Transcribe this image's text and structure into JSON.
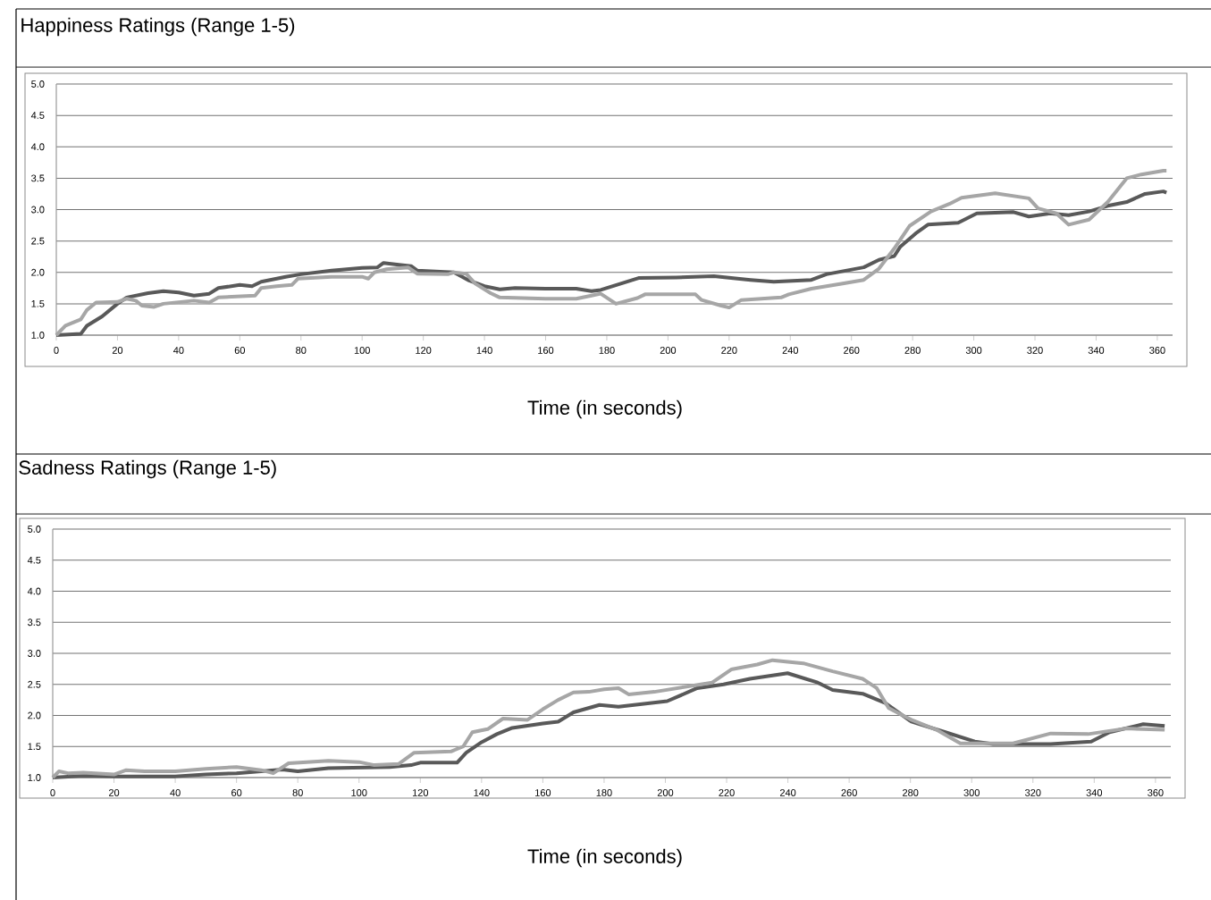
{
  "chart_data": [
    {
      "type": "line",
      "title": "Happiness Ratings (Range 1-5)",
      "xlabel": "Time (in seconds)",
      "xlim": [
        0,
        365
      ],
      "ylim": [
        1,
        5
      ],
      "grid": "y",
      "xticks": [
        0,
        20,
        40,
        60,
        80,
        100,
        120,
        140,
        160,
        180,
        200,
        220,
        240,
        260,
        280,
        300,
        320,
        340,
        360
      ],
      "yticks": [
        {
          "value": 1.0,
          "label": "1.0"
        },
        {
          "value": 1.5,
          "label": "1.5"
        },
        {
          "value": 2.0,
          "label": "2.0"
        },
        {
          "value": 2.5,
          "label": "2.5"
        },
        {
          "value": 3.0,
          "label": "3.0"
        },
        {
          "value": 3.5,
          "label": "3.5"
        },
        {
          "value": 4.0,
          "label": "4.0"
        },
        {
          "value": 4.5,
          "label": "4.5"
        },
        {
          "value": 5.0,
          "label": "5.0"
        }
      ],
      "series": [
        {
          "color": "#595959",
          "x": [
            0,
            8,
            10,
            15,
            20,
            23,
            30,
            35,
            40,
            45,
            50,
            53,
            60,
            64,
            67,
            75,
            80,
            90,
            100,
            105,
            107,
            112,
            116,
            118,
            130,
            135,
            140,
            145,
            150,
            160,
            170,
            175,
            178,
            190.4,
            202.7,
            215,
            227,
            234.6,
            246.9,
            251.8,
            264,
            269,
            274,
            276,
            281,
            285,
            294.9,
            301,
            313,
            318,
            325,
            331,
            337.7,
            343.8,
            350,
            356,
            362,
            363
          ],
          "values": [
            1.0,
            1.02,
            1.15,
            1.3,
            1.5,
            1.6,
            1.67,
            1.7,
            1.68,
            1.63,
            1.66,
            1.75,
            1.8,
            1.78,
            1.85,
            1.93,
            1.97,
            2.03,
            2.07,
            2.08,
            2.15,
            2.12,
            2.1,
            2.03,
            2.0,
            1.87,
            1.78,
            1.73,
            1.75,
            1.74,
            1.74,
            1.7,
            1.72,
            1.91,
            1.92,
            1.94,
            1.88,
            1.85,
            1.88,
            1.97,
            2.08,
            2.2,
            2.26,
            2.41,
            2.62,
            2.76,
            2.79,
            2.94,
            2.96,
            2.89,
            2.94,
            2.91,
            2.97,
            3.06,
            3.12,
            3.25,
            3.29,
            3.27
          ]
        },
        {
          "color": "#a6a6a6",
          "x": [
            0,
            3,
            8,
            10,
            13,
            20,
            23,
            26,
            28,
            32,
            35,
            45,
            50,
            53,
            65,
            67,
            72,
            77,
            79,
            90,
            100,
            102,
            104,
            108,
            115,
            118,
            128,
            130,
            134,
            137,
            142,
            145,
            160,
            170,
            175,
            178,
            183,
            190,
            192.5,
            209,
            211,
            217.4,
            220,
            224,
            237,
            239.5,
            246.9,
            256.7,
            264,
            269,
            274,
            279,
            286,
            292,
            296,
            307,
            318,
            321,
            327,
            331,
            337.7,
            343.8,
            350,
            354.8,
            362,
            363
          ],
          "values": [
            1.0,
            1.15,
            1.25,
            1.4,
            1.52,
            1.53,
            1.58,
            1.55,
            1.47,
            1.45,
            1.5,
            1.55,
            1.52,
            1.6,
            1.63,
            1.75,
            1.78,
            1.8,
            1.9,
            1.93,
            1.93,
            1.9,
            2.0,
            2.05,
            2.08,
            1.98,
            1.97,
            2.0,
            1.98,
            1.82,
            1.67,
            1.6,
            1.58,
            1.58,
            1.63,
            1.66,
            1.5,
            1.59,
            1.65,
            1.65,
            1.56,
            1.47,
            1.44,
            1.56,
            1.6,
            1.65,
            1.74,
            1.82,
            1.88,
            2.06,
            2.38,
            2.74,
            2.97,
            3.09,
            3.19,
            3.26,
            3.18,
            3.02,
            2.94,
            2.76,
            2.84,
            3.12,
            3.5,
            3.56,
            3.62,
            3.62
          ]
        }
      ]
    },
    {
      "type": "line",
      "title": "Sadness Ratings (Range 1-5)",
      "xlabel": "Time (in seconds)",
      "xlim": [
        0,
        365
      ],
      "ylim": [
        1,
        5
      ],
      "grid": "y",
      "xticks": [
        0,
        20,
        40,
        60,
        80,
        100,
        120,
        140,
        160,
        180,
        200,
        220,
        240,
        260,
        280,
        300,
        320,
        340,
        360
      ],
      "yticks": [
        {
          "value": 1.0,
          "label": "1.0"
        },
        {
          "value": 1.5,
          "label": "1.5"
        },
        {
          "value": 2.0,
          "label": "2.0"
        },
        {
          "value": 2.5,
          "label": "2.5"
        },
        {
          "value": 3.0,
          "label": "3.0"
        },
        {
          "value": 3.5,
          "label": "3.5"
        },
        {
          "value": 4.0,
          "label": "4.0"
        },
        {
          "value": 4.5,
          "label": "4.5"
        },
        {
          "value": 5.0,
          "label": "5.0"
        }
      ],
      "series": [
        {
          "color": "#595959",
          "x": [
            0,
            10,
            20,
            40,
            50,
            60,
            68,
            75,
            80,
            90,
            110,
            117,
            120,
            132,
            135,
            140,
            145,
            150,
            160,
            165,
            170,
            178.5,
            184.7,
            200.6,
            210.4,
            219,
            227.6,
            239.9,
            249.7,
            254.6,
            264.4,
            271.8,
            280.3,
            291.4,
            301,
            307,
            325.8,
            339,
            345,
            356,
            363
          ],
          "values": [
            1.0,
            1.03,
            1.02,
            1.02,
            1.05,
            1.07,
            1.1,
            1.13,
            1.1,
            1.15,
            1.17,
            1.2,
            1.24,
            1.24,
            1.4,
            1.57,
            1.7,
            1.8,
            1.87,
            1.9,
            2.05,
            2.17,
            2.14,
            2.23,
            2.44,
            2.5,
            2.59,
            2.68,
            2.53,
            2.41,
            2.35,
            2.2,
            1.9,
            1.73,
            1.58,
            1.54,
            1.54,
            1.58,
            1.73,
            1.86,
            1.83
          ]
        },
        {
          "color": "#a6a6a6",
          "x": [
            0,
            2,
            5,
            10,
            20,
            24,
            30,
            40,
            50,
            60,
            68,
            72,
            77,
            90,
            100,
            105,
            113,
            118,
            130,
            134,
            137,
            142,
            147,
            155,
            160,
            165,
            170,
            175,
            180,
            184.7,
            188,
            196.4,
            215.3,
            221.5,
            230,
            235,
            245,
            254.6,
            264.4,
            269,
            272.9,
            280.3,
            288.9,
            296.3,
            313.5,
            325.8,
            338,
            350.3,
            363
          ],
          "values": [
            1.0,
            1.1,
            1.07,
            1.08,
            1.05,
            1.12,
            1.1,
            1.1,
            1.14,
            1.17,
            1.12,
            1.07,
            1.23,
            1.27,
            1.25,
            1.2,
            1.22,
            1.4,
            1.42,
            1.5,
            1.73,
            1.78,
            1.95,
            1.93,
            2.1,
            2.25,
            2.37,
            2.38,
            2.42,
            2.44,
            2.34,
            2.38,
            2.53,
            2.74,
            2.82,
            2.89,
            2.84,
            2.71,
            2.59,
            2.44,
            2.12,
            1.93,
            1.76,
            1.55,
            1.55,
            1.71,
            1.7,
            1.79,
            1.77
          ]
        }
      ]
    }
  ]
}
